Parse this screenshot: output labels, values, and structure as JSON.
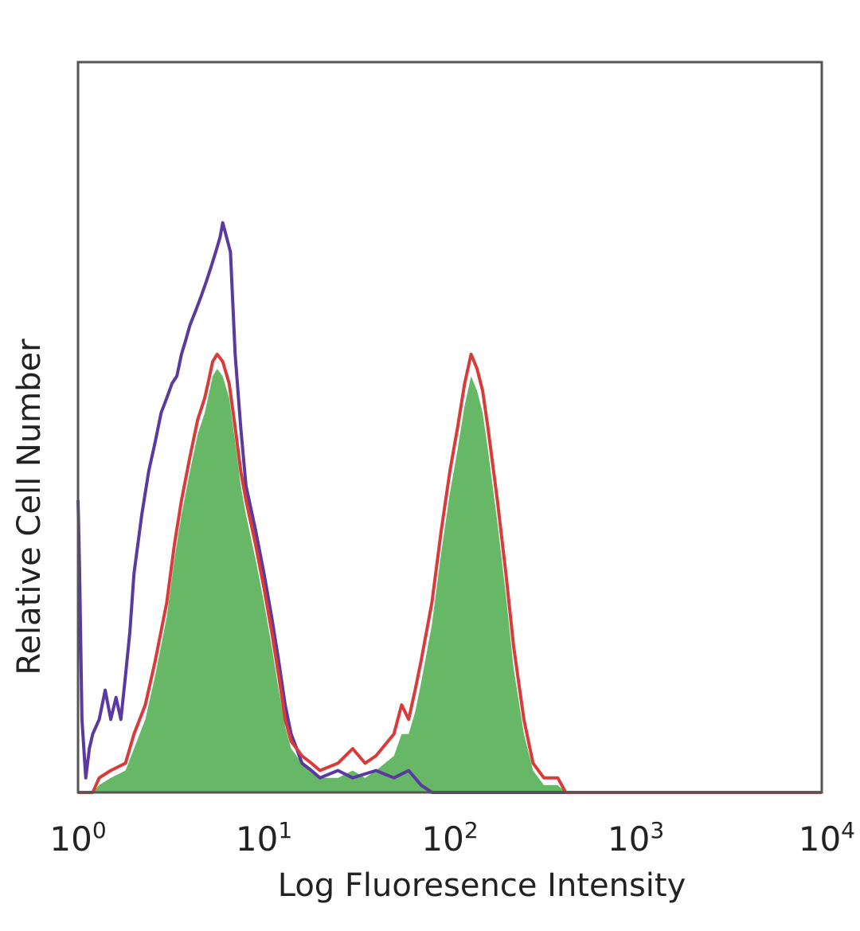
{
  "chart_data": {
    "type": "area",
    "title": "",
    "xlabel": "Log Fluoresence Intensity",
    "ylabel": "Relative Cell Number",
    "x_scale": "log",
    "xlim": [
      1,
      10000
    ],
    "ylim": [
      0,
      100
    ],
    "grid": false,
    "legend": "none",
    "x_ticks": [
      {
        "base": "10",
        "exp": "0",
        "value": 1
      },
      {
        "base": "10",
        "exp": "1",
        "value": 10
      },
      {
        "base": "10",
        "exp": "2",
        "value": 100
      },
      {
        "base": "10",
        "exp": "3",
        "value": 1000
      },
      {
        "base": "10",
        "exp": "4",
        "value": 10000
      }
    ],
    "series": [
      {
        "color": "#5a3aa0",
        "style": "line",
        "points": [
          [
            1.0,
            40
          ],
          [
            1.02,
            30
          ],
          [
            1.05,
            10
          ],
          [
            1.1,
            2
          ],
          [
            1.15,
            6
          ],
          [
            1.2,
            8
          ],
          [
            1.3,
            10
          ],
          [
            1.4,
            14
          ],
          [
            1.5,
            10
          ],
          [
            1.6,
            13
          ],
          [
            1.7,
            10
          ],
          [
            1.8,
            16
          ],
          [
            1.9,
            22
          ],
          [
            2.0,
            30
          ],
          [
            2.2,
            38
          ],
          [
            2.4,
            44
          ],
          [
            2.6,
            48
          ],
          [
            2.8,
            52
          ],
          [
            3.0,
            54
          ],
          [
            3.2,
            56
          ],
          [
            3.4,
            57
          ],
          [
            3.6,
            60
          ],
          [
            3.8,
            62
          ],
          [
            4.0,
            64
          ],
          [
            4.3,
            66
          ],
          [
            4.6,
            68
          ],
          [
            4.9,
            70
          ],
          [
            5.2,
            72
          ],
          [
            5.5,
            74
          ],
          [
            5.8,
            76
          ],
          [
            6.0,
            78
          ],
          [
            6.3,
            76
          ],
          [
            6.6,
            74
          ],
          [
            7.0,
            60
          ],
          [
            7.5,
            50
          ],
          [
            8.0,
            42
          ],
          [
            9.0,
            36
          ],
          [
            10,
            30
          ],
          [
            11,
            24
          ],
          [
            12,
            18
          ],
          [
            13,
            12
          ],
          [
            14,
            8
          ],
          [
            15,
            6
          ],
          [
            16,
            4
          ],
          [
            18,
            3
          ],
          [
            20,
            2
          ],
          [
            25,
            3
          ],
          [
            30,
            2
          ],
          [
            40,
            3
          ],
          [
            50,
            2
          ],
          [
            60,
            3
          ],
          [
            70,
            1
          ],
          [
            80,
            0
          ],
          [
            100,
            0
          ],
          [
            1000,
            0
          ],
          [
            10000,
            0
          ]
        ]
      },
      {
        "color": "#d93a3a",
        "style": "line",
        "points": [
          [
            1.0,
            0
          ],
          [
            1.2,
            0
          ],
          [
            1.3,
            2
          ],
          [
            1.5,
            3
          ],
          [
            1.8,
            4
          ],
          [
            2.0,
            8
          ],
          [
            2.3,
            12
          ],
          [
            2.6,
            18
          ],
          [
            3.0,
            26
          ],
          [
            3.3,
            34
          ],
          [
            3.6,
            40
          ],
          [
            4.0,
            46
          ],
          [
            4.4,
            51
          ],
          [
            4.8,
            54
          ],
          [
            5.0,
            56
          ],
          [
            5.3,
            59
          ],
          [
            5.6,
            60
          ],
          [
            6.0,
            59
          ],
          [
            6.5,
            56
          ],
          [
            7.0,
            50
          ],
          [
            7.5,
            44
          ],
          [
            8.0,
            40
          ],
          [
            9.0,
            34
          ],
          [
            10,
            28
          ],
          [
            11,
            22
          ],
          [
            12,
            16
          ],
          [
            13,
            10
          ],
          [
            14,
            7
          ],
          [
            16,
            5
          ],
          [
            18,
            4
          ],
          [
            20,
            3
          ],
          [
            25,
            4
          ],
          [
            30,
            6
          ],
          [
            35,
            4
          ],
          [
            40,
            5
          ],
          [
            50,
            8
          ],
          [
            55,
            12
          ],
          [
            60,
            10
          ],
          [
            65,
            14
          ],
          [
            70,
            18
          ],
          [
            80,
            26
          ],
          [
            90,
            36
          ],
          [
            100,
            44
          ],
          [
            110,
            50
          ],
          [
            120,
            56
          ],
          [
            130,
            60
          ],
          [
            140,
            58
          ],
          [
            150,
            55
          ],
          [
            160,
            50
          ],
          [
            180,
            40
          ],
          [
            200,
            30
          ],
          [
            220,
            20
          ],
          [
            250,
            10
          ],
          [
            280,
            4
          ],
          [
            320,
            2
          ],
          [
            380,
            2
          ],
          [
            420,
            0
          ],
          [
            10000,
            0
          ]
        ]
      },
      {
        "color": "#66b866",
        "style": "filled",
        "points": [
          [
            1.0,
            0
          ],
          [
            1.2,
            0
          ],
          [
            1.3,
            1
          ],
          [
            1.5,
            2
          ],
          [
            1.8,
            3
          ],
          [
            2.0,
            6
          ],
          [
            2.3,
            10
          ],
          [
            2.6,
            16
          ],
          [
            3.0,
            24
          ],
          [
            3.3,
            32
          ],
          [
            3.6,
            38
          ],
          [
            4.0,
            44
          ],
          [
            4.4,
            49
          ],
          [
            4.8,
            52
          ],
          [
            5.0,
            54
          ],
          [
            5.3,
            57
          ],
          [
            5.6,
            58
          ],
          [
            6.0,
            57
          ],
          [
            6.5,
            54
          ],
          [
            7.0,
            48
          ],
          [
            7.5,
            42
          ],
          [
            8.0,
            38
          ],
          [
            9.0,
            32
          ],
          [
            10,
            26
          ],
          [
            11,
            20
          ],
          [
            12,
            14
          ],
          [
            13,
            9
          ],
          [
            14,
            6
          ],
          [
            16,
            4
          ],
          [
            18,
            3
          ],
          [
            20,
            2
          ],
          [
            25,
            2
          ],
          [
            30,
            3
          ],
          [
            35,
            2
          ],
          [
            40,
            3
          ],
          [
            50,
            5
          ],
          [
            55,
            8
          ],
          [
            60,
            8
          ],
          [
            65,
            11
          ],
          [
            70,
            15
          ],
          [
            80,
            23
          ],
          [
            90,
            33
          ],
          [
            100,
            41
          ],
          [
            110,
            47
          ],
          [
            120,
            53
          ],
          [
            130,
            57
          ],
          [
            140,
            55
          ],
          [
            150,
            52
          ],
          [
            160,
            47
          ],
          [
            180,
            37
          ],
          [
            200,
            27
          ],
          [
            220,
            17
          ],
          [
            250,
            8
          ],
          [
            280,
            3
          ],
          [
            320,
            1
          ],
          [
            380,
            1
          ],
          [
            420,
            0
          ],
          [
            10000,
            0
          ]
        ]
      }
    ]
  }
}
